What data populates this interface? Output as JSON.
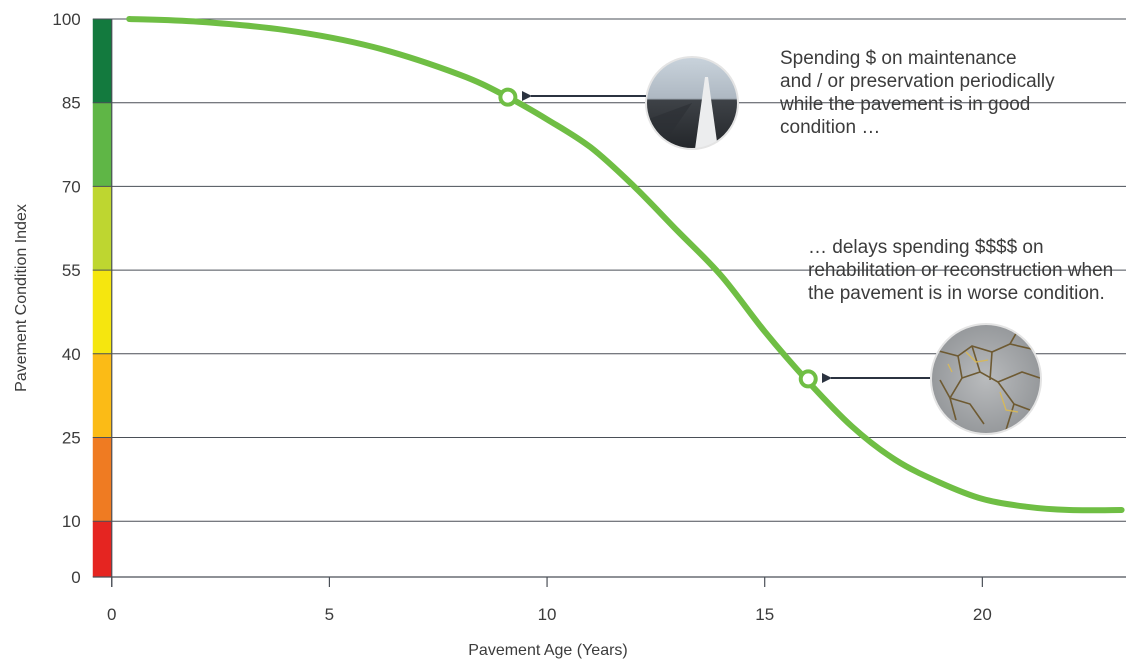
{
  "chart_data": {
    "type": "line",
    "xlabel": "Pavement Age (Years)",
    "ylabel": "Pavement  Condition Index",
    "xlim": [
      -0.5,
      23.3
    ],
    "ylim": [
      0,
      100
    ],
    "x_ticks": [
      0,
      5,
      10,
      15,
      20
    ],
    "y_ticks": [
      0,
      10,
      25,
      40,
      55,
      70,
      85,
      100
    ],
    "grid_y": [
      10,
      25,
      40,
      55,
      70,
      85,
      100
    ],
    "condition_bands": [
      {
        "from": 0,
        "to": 10,
        "color": "#e52521"
      },
      {
        "from": 10,
        "to": 25,
        "color": "#ef7b22"
      },
      {
        "from": 25,
        "to": 40,
        "color": "#fbbb16"
      },
      {
        "from": 40,
        "to": 55,
        "color": "#f5e60f"
      },
      {
        "from": 55,
        "to": 70,
        "color": "#bed630"
      },
      {
        "from": 70,
        "to": 85,
        "color": "#5fb646"
      },
      {
        "from": 85,
        "to": 100,
        "color": "#137a3e"
      }
    ],
    "series": [
      {
        "color": "#6fbe44",
        "x": [
          0.4,
          2,
          4,
          6,
          8,
          9.1,
          10,
          11,
          12,
          13,
          14,
          15,
          16,
          17,
          18,
          19,
          20,
          21,
          22,
          23.2
        ],
        "y": [
          100,
          99.5,
          98,
          95,
          90,
          86,
          82,
          77,
          70,
          62,
          54,
          44,
          35,
          27,
          21,
          17,
          14,
          12.6,
          12,
          12
        ]
      }
    ],
    "markers": [
      {
        "x": 9.1,
        "y": 86
      },
      {
        "x": 16,
        "y": 35.5
      }
    ],
    "annotations": [
      {
        "lines": [
          "Spending $ on maintenance",
          "and / or preservation periodically",
          "while the pavement is in good",
          "condition …"
        ],
        "photo_icon": "new-pavement-photo-icon",
        "arrow_to_marker": 0
      },
      {
        "lines": [
          "… delays spending $$$$ on",
          "rehabilitation or reconstruction when",
          "the pavement is in worse condition."
        ],
        "photo_icon": "cracked-pavement-photo-icon",
        "arrow_to_marker": 1
      }
    ]
  }
}
